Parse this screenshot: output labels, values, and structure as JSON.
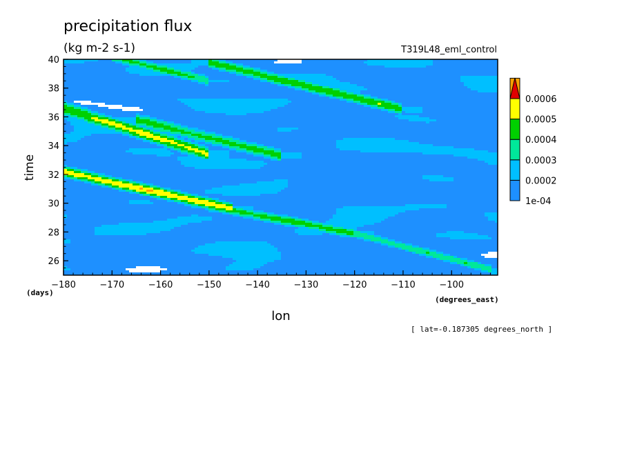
{
  "chart_data": {
    "type": "heatmap",
    "title": "precipitation flux",
    "units": "(kg m-2 s-1)",
    "experiment": "T319L48_eml_control",
    "xlabel": "lon",
    "x_units": "(degrees_east)",
    "ylabel": "time",
    "y_units": "(days)",
    "footnote": "[ lat=-0.187305 degrees_north ]",
    "xlim": [
      -180,
      -90.5
    ],
    "ylim": [
      25,
      40
    ],
    "x_ticks": [
      -180,
      -170,
      -160,
      -150,
      -140,
      -130,
      -120,
      -110,
      -100
    ],
    "y_ticks": [
      26,
      28,
      30,
      32,
      34,
      36,
      38,
      40
    ],
    "colorbar": {
      "labels": [
        "1e-04",
        "0.0002",
        "0.0003",
        "0.0004",
        "0.0005",
        "0.0006"
      ],
      "levels": [
        0.0001,
        0.0002,
        0.0003,
        0.0004,
        0.0005,
        0.0006
      ],
      "colors": [
        "#ffffff",
        "#1e90ff",
        "#00bfff",
        "#00e89a",
        "#00d000",
        "#ffff00",
        "#ffa000",
        "#e00000"
      ]
    },
    "rain_bands": [
      {
        "lon_start": -180,
        "day_start": 32.2,
        "lon_end": -145,
        "day_end": 29.6,
        "width_days": 0.45,
        "peak": 0.00066
      },
      {
        "lon_start": -150,
        "day_start": 29.8,
        "lon_end": -120,
        "day_end": 27.9,
        "width_days": 0.4,
        "peak": 0.00052
      },
      {
        "lon_start": -120,
        "day_start": 27.9,
        "lon_end": -92,
        "day_end": 25.4,
        "width_days": 0.35,
        "peak": 0.00045
      },
      {
        "lon_start": -180,
        "day_start": 36.6,
        "lon_end": -150,
        "day_end": 33.4,
        "width_days": 0.55,
        "peak": 0.0006
      },
      {
        "lon_start": -165,
        "day_start": 35.8,
        "lon_end": -135,
        "day_end": 33.3,
        "width_days": 0.5,
        "peak": 0.00052
      },
      {
        "lon_start": -150,
        "day_start": 39.8,
        "lon_end": -110,
        "day_end": 36.5,
        "width_days": 0.45,
        "peak": 0.00055
      },
      {
        "lon_start": -170,
        "day_start": 40.2,
        "lon_end": -150,
        "day_end": 38.5,
        "width_days": 0.4,
        "peak": 0.0005
      }
    ]
  }
}
